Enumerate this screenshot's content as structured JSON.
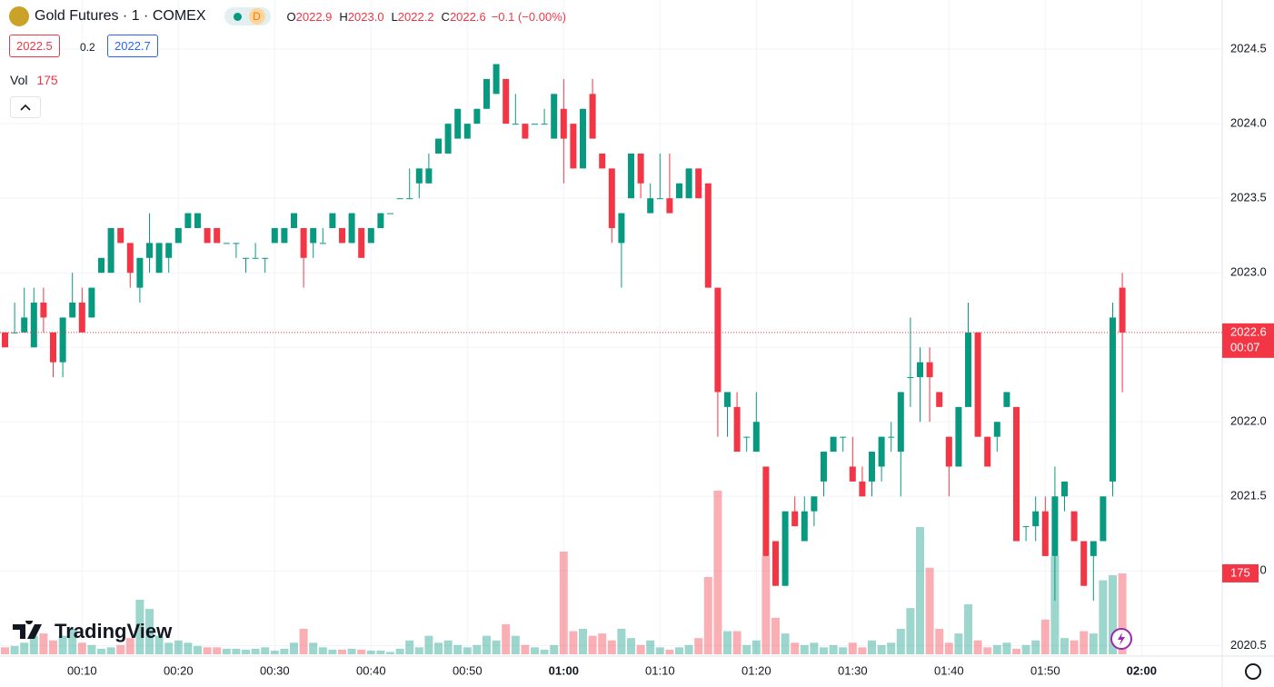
{
  "chart_data": {
    "type": "candlestick",
    "title": "Gold Futures · 1 · COMEX",
    "badge": "D",
    "ohlc_legend": [
      {
        "label": "O",
        "value": "2022.9"
      },
      {
        "label": "H",
        "value": "2023.0"
      },
      {
        "label": "L",
        "value": "2022.2"
      },
      {
        "label": "C",
        "value": "2022.6"
      }
    ],
    "change": "−0.1 (−0.00%)",
    "bid": "2022.5",
    "spread": "0.2",
    "ask": "2022.7",
    "volume_label": "Vol",
    "volume_value": "175",
    "last_price_label": "2022.6",
    "countdown": "00:07",
    "volume_tag": "175",
    "brand": "TradingView",
    "up_color": "#089981",
    "down_color": "#f23645",
    "grid": true,
    "ylim": [
      2020.38,
      2024.83
    ],
    "yticks": [
      2020.5,
      {
        "value": 2021,
        "label": "2021.0"
      },
      2021.5,
      {
        "value": 2022,
        "label": "2022.0"
      },
      2022.5,
      {
        "value": 2023,
        "label": "2023.0"
      },
      2023.5,
      {
        "value": 2024,
        "label": "2024.0"
      },
      2024.5
    ],
    "xticks": [
      "00:10",
      "00:20",
      "00:30",
      "00:40",
      "00:50",
      "01:00",
      "01:10",
      "01:20",
      "01:30",
      "01:40",
      "01:50",
      "02:00"
    ],
    "x": [
      "00:02",
      "00:03",
      "00:04",
      "00:05",
      "00:06",
      "00:07",
      "00:08",
      "00:09",
      "00:10",
      "00:11",
      "00:12",
      "00:13",
      "00:14",
      "00:15",
      "00:16",
      "00:17",
      "00:18",
      "00:19",
      "00:20",
      "00:21",
      "00:22",
      "00:23",
      "00:24",
      "00:25",
      "00:26",
      "00:27",
      "00:28",
      "00:29",
      "00:30",
      "00:31",
      "00:32",
      "00:33",
      "00:34",
      "00:35",
      "00:36",
      "00:37",
      "00:38",
      "00:39",
      "00:40",
      "00:41",
      "00:42",
      "00:43",
      "00:44",
      "00:45",
      "00:46",
      "00:47",
      "00:48",
      "00:49",
      "00:50",
      "00:51",
      "00:52",
      "00:53",
      "00:54",
      "00:55",
      "00:56",
      "00:57",
      "00:58",
      "00:59",
      "01:00",
      "01:01",
      "01:02",
      "01:03",
      "01:04",
      "01:05",
      "01:06",
      "01:07",
      "01:08",
      "01:09",
      "01:10",
      "01:11",
      "01:12",
      "01:13",
      "01:14",
      "01:15",
      "01:16",
      "01:17",
      "01:18",
      "01:19",
      "01:20",
      "01:21",
      "01:22",
      "01:23",
      "01:24",
      "01:25",
      "01:26",
      "01:27",
      "01:28",
      "01:29",
      "01:30",
      "01:31",
      "01:32",
      "01:33",
      "01:34",
      "01:35",
      "01:36",
      "01:37",
      "01:38",
      "01:39",
      "01:40",
      "01:41",
      "01:42",
      "01:43",
      "01:44",
      "01:45",
      "01:46",
      "01:47",
      "01:48",
      "01:49",
      "01:50",
      "01:51",
      "01:52",
      "01:53",
      "01:54",
      "01:55",
      "01:56",
      "01:57",
      "01:58"
    ],
    "open": [
      2022.6,
      2022.6,
      2022.6,
      2022.5,
      2022.8,
      2022.6,
      2022.4,
      2022.7,
      2022.8,
      2022.7,
      2023.0,
      2023.0,
      2023.3,
      2023.2,
      2022.9,
      2023.1,
      2023.0,
      2023.1,
      2023.2,
      2023.3,
      2023.3,
      2023.3,
      2023.3,
      2023.2,
      2023.2,
      2023.1,
      2023.1,
      2023.1,
      2023.2,
      2023.2,
      2023.3,
      2023.3,
      2023.2,
      2023.2,
      2023.3,
      2023.3,
      2023.2,
      2023.3,
      2023.2,
      2023.3,
      2023.4,
      2023.5,
      2023.5,
      2023.6,
      2023.6,
      2023.8,
      2023.8,
      2023.9,
      2023.9,
      2024.0,
      2024.1,
      2024.2,
      2024.3,
      2024.0,
      2024.0,
      2024.0,
      2024.0,
      2023.9,
      2024.1,
      2024.0,
      2023.7,
      2024.2,
      2023.8,
      2023.7,
      2023.2,
      2023.5,
      2023.8,
      2023.4,
      2023.5,
      2023.5,
      2023.5,
      2023.5,
      2023.7,
      2023.6,
      2022.9,
      2022.1,
      2022.1,
      2021.9,
      2021.8,
      2021.7,
      2021.2,
      2020.9,
      2021.4,
      2021.2,
      2021.4,
      2021.6,
      2021.8,
      2021.9,
      2021.7,
      2021.6,
      2021.6,
      2021.7,
      2021.9,
      2021.8,
      2022.3,
      2022.3,
      2022.4,
      2022.2,
      2021.9,
      2021.7,
      2022.1,
      2022.6,
      2021.9,
      2021.9,
      2022.1,
      2022.1,
      2021.3,
      2021.3,
      2021.4,
      2021.1,
      2021.5,
      2021.4,
      2021.2,
      2021.1,
      2021.2,
      2021.6,
      2022.9
    ],
    "high": [
      2022.6,
      2022.8,
      2022.9,
      2022.9,
      2022.9,
      2022.6,
      2022.7,
      2023.0,
      2022.9,
      2022.9,
      2023.1,
      2023.3,
      2023.3,
      2023.2,
      2023.1,
      2023.4,
      2023.2,
      2023.2,
      2023.3,
      2023.4,
      2023.4,
      2023.3,
      2023.3,
      2023.2,
      2023.2,
      2023.1,
      2023.2,
      2023.1,
      2023.3,
      2023.3,
      2023.4,
      2023.3,
      2023.3,
      2023.3,
      2023.4,
      2023.3,
      2023.4,
      2023.3,
      2023.3,
      2023.4,
      2023.4,
      2023.5,
      2023.7,
      2023.7,
      2023.8,
      2023.9,
      2024.0,
      2024.1,
      2024.0,
      2024.1,
      2024.3,
      2024.4,
      2024.3,
      2024.2,
      2024.0,
      2024.0,
      2024.1,
      2024.2,
      2024.3,
      2024.0,
      2024.1,
      2024.3,
      2023.8,
      2023.7,
      2023.4,
      2023.8,
      2023.8,
      2023.6,
      2023.8,
      2023.8,
      2023.6,
      2023.7,
      2023.7,
      2023.6,
      2022.9,
      2022.2,
      2022.2,
      2021.9,
      2022.2,
      2021.7,
      2021.2,
      2021.4,
      2021.5,
      2021.5,
      2021.5,
      2021.8,
      2021.9,
      2021.9,
      2021.9,
      2021.7,
      2021.8,
      2021.9,
      2022.0,
      2022.2,
      2022.7,
      2022.5,
      2022.5,
      2022.2,
      2021.9,
      2022.1,
      2022.8,
      2022.6,
      2021.9,
      2022.0,
      2022.2,
      2022.1,
      2021.3,
      2021.5,
      2021.5,
      2021.7,
      2021.6,
      2021.4,
      2021.2,
      2021.2,
      2021.5,
      2022.8,
      2023.0
    ],
    "low": [
      2022.5,
      2022.6,
      2022.6,
      2022.5,
      2022.6,
      2022.3,
      2022.3,
      2022.7,
      2022.6,
      2022.7,
      2023.0,
      2023.0,
      2023.2,
      2022.9,
      2022.8,
      2023.0,
      2023.0,
      2023.0,
      2023.2,
      2023.3,
      2023.3,
      2023.2,
      2023.2,
      2023.2,
      2023.1,
      2023.0,
      2023.1,
      2023.0,
      2023.2,
      2023.2,
      2023.3,
      2022.9,
      2023.1,
      2023.2,
      2023.3,
      2023.2,
      2023.2,
      2023.1,
      2023.2,
      2023.3,
      2023.4,
      2023.5,
      2023.5,
      2023.5,
      2023.6,
      2023.8,
      2023.8,
      2023.9,
      2023.9,
      2024.0,
      2024.1,
      2024.2,
      2024.0,
      2024.0,
      2023.9,
      2024.0,
      2024.0,
      2023.9,
      2023.6,
      2023.7,
      2023.7,
      2023.9,
      2023.7,
      2023.2,
      2022.9,
      2023.5,
      2023.5,
      2023.4,
      2023.5,
      2023.4,
      2023.5,
      2023.5,
      2023.5,
      2022.9,
      2021.9,
      2021.9,
      2021.8,
      2021.8,
      2021.8,
      2021.1,
      2020.9,
      2020.9,
      2021.3,
      2021.2,
      2021.3,
      2021.5,
      2021.8,
      2021.8,
      2021.6,
      2021.5,
      2021.5,
      2021.6,
      2021.8,
      2021.5,
      2022.1,
      2022.0,
      2022.0,
      2022.1,
      2021.5,
      2021.7,
      2022.1,
      2021.9,
      2021.7,
      2021.8,
      2022.1,
      2021.2,
      2021.2,
      2021.2,
      2021.1,
      2020.8,
      2021.4,
      2021.2,
      2020.9,
      2020.8,
      2021.2,
      2021.5,
      2022.2
    ],
    "close": [
      2022.5,
      2022.6,
      2022.7,
      2022.8,
      2022.7,
      2022.4,
      2022.7,
      2022.8,
      2022.6,
      2022.9,
      2023.1,
      2023.3,
      2023.2,
      2023.0,
      2023.1,
      2023.2,
      2023.2,
      2023.2,
      2023.3,
      2023.4,
      2023.4,
      2023.2,
      2023.2,
      2023.2,
      2023.2,
      2023.1,
      2023.1,
      2023.1,
      2023.3,
      2023.3,
      2023.4,
      2023.1,
      2023.3,
      2023.2,
      2023.4,
      2023.2,
      2023.4,
      2023.1,
      2023.3,
      2023.4,
      2023.4,
      2023.5,
      2023.5,
      2023.7,
      2023.7,
      2023.9,
      2024.0,
      2024.1,
      2024.0,
      2024.1,
      2024.3,
      2024.4,
      2024.0,
      2024.0,
      2023.9,
      2024.0,
      2024.0,
      2024.2,
      2023.9,
      2023.7,
      2024.1,
      2023.9,
      2023.7,
      2023.3,
      2023.4,
      2023.8,
      2023.6,
      2023.5,
      2023.5,
      2023.4,
      2023.6,
      2023.7,
      2023.5,
      2022.9,
      2022.2,
      2022.2,
      2021.8,
      2021.9,
      2022.0,
      2021.1,
      2020.9,
      2021.4,
      2021.3,
      2021.4,
      2021.5,
      2021.8,
      2021.9,
      2021.9,
      2021.6,
      2021.5,
      2021.8,
      2021.9,
      2021.9,
      2022.2,
      2022.3,
      2022.4,
      2022.3,
      2022.1,
      2021.7,
      2022.1,
      2022.6,
      2021.9,
      2021.7,
      2022.0,
      2022.2,
      2021.2,
      2021.3,
      2021.4,
      2021.1,
      2021.5,
      2021.6,
      2021.2,
      2020.9,
      2021.2,
      2021.5,
      2022.7,
      2022.6
    ],
    "volume": [
      15,
      18,
      25,
      40,
      45,
      30,
      40,
      55,
      25,
      20,
      12,
      15,
      20,
      35,
      118,
      98,
      40,
      25,
      30,
      25,
      18,
      15,
      15,
      12,
      12,
      10,
      12,
      15,
      8,
      12,
      25,
      55,
      25,
      15,
      10,
      10,
      12,
      10,
      8,
      8,
      5,
      12,
      30,
      15,
      40,
      25,
      30,
      20,
      15,
      20,
      40,
      30,
      65,
      40,
      20,
      15,
      10,
      20,
      222,
      50,
      55,
      40,
      45,
      30,
      55,
      35,
      20,
      30,
      15,
      10,
      15,
      20,
      35,
      167,
      354,
      50,
      50,
      20,
      30,
      212,
      79,
      45,
      25,
      20,
      25,
      15,
      20,
      15,
      25,
      15,
      30,
      20,
      25,
      55,
      100,
      275,
      187,
      55,
      25,
      45,
      108,
      30,
      15,
      20,
      25,
      12,
      20,
      30,
      75,
      212,
      35,
      30,
      50,
      45,
      160,
      171,
      175
    ]
  }
}
